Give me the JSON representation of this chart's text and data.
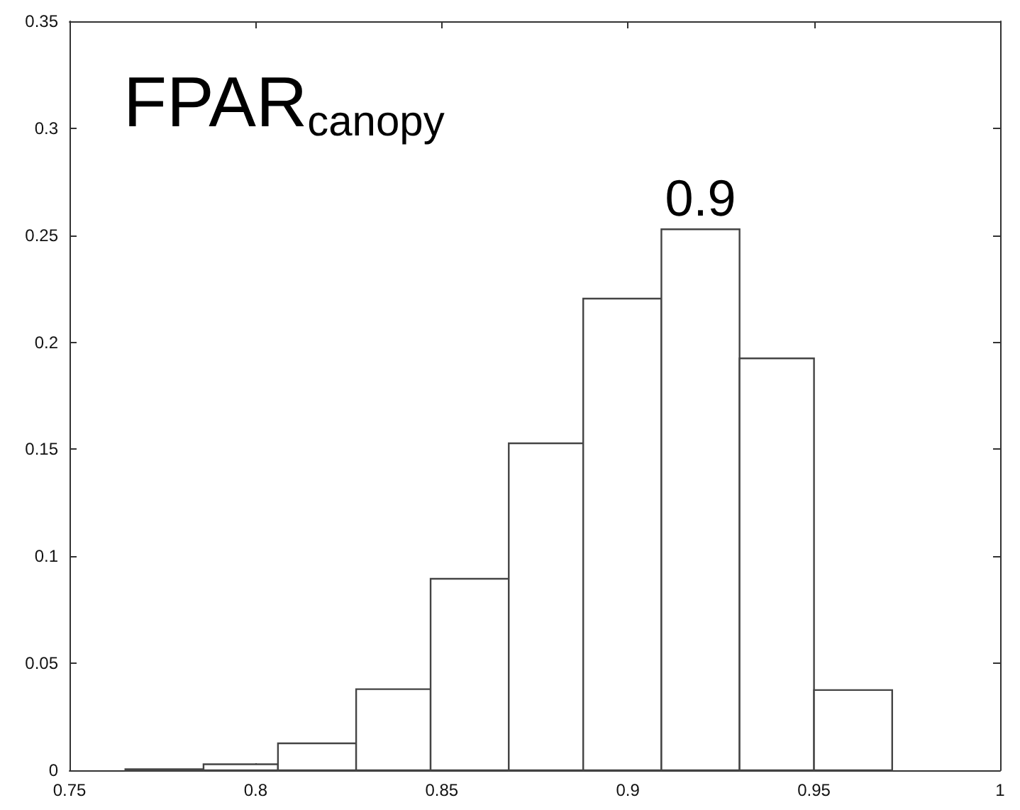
{
  "chart_data": {
    "type": "histogram",
    "title": "FPAR$_{canopy}$",
    "bins": [
      0.765,
      0.786,
      0.806,
      0.827,
      0.847,
      0.868,
      0.888,
      0.909,
      0.93,
      0.95,
      0.971
    ],
    "values": [
      0.0005,
      0.0028,
      0.0126,
      0.0379,
      0.0895,
      0.1528,
      0.2204,
      0.2528,
      0.1925,
      0.0375
    ],
    "color": "#ffffff",
    "annotations": [
      {
        "text": "0.9",
        "x": 0.9195,
        "y": 0.2528
      }
    ],
    "xlim": [
      0.75,
      1
    ],
    "xticks": [
      0.75,
      0.8,
      0.85,
      0.9,
      0.95,
      1
    ],
    "ylim": [
      0,
      0.35
    ],
    "yticks": [
      0,
      0.05,
      0.1,
      0.15,
      0.2,
      0.25,
      0.3,
      0.35
    ]
  }
}
